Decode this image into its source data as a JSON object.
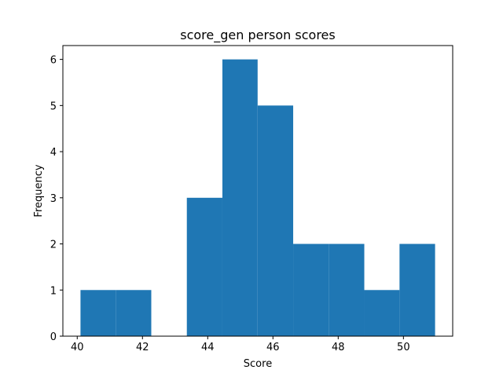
{
  "chart_data": {
    "type": "bar",
    "subtype": "histogram",
    "title": "score_gen person scores",
    "xlabel": "Score",
    "ylabel": "Frequency",
    "bar_color": "#1f77b4",
    "bins": [
      {
        "x0": 40.1,
        "x1": 41.18,
        "count": 1
      },
      {
        "x0": 41.18,
        "x1": 42.27,
        "count": 1
      },
      {
        "x0": 42.27,
        "x1": 43.36,
        "count": 0
      },
      {
        "x0": 43.36,
        "x1": 44.45,
        "count": 3
      },
      {
        "x0": 44.45,
        "x1": 45.53,
        "count": 6
      },
      {
        "x0": 45.53,
        "x1": 46.62,
        "count": 5
      },
      {
        "x0": 46.62,
        "x1": 47.71,
        "count": 2
      },
      {
        "x0": 47.71,
        "x1": 48.8,
        "count": 2
      },
      {
        "x0": 48.8,
        "x1": 49.88,
        "count": 1
      },
      {
        "x0": 49.88,
        "x1": 50.97,
        "count": 2
      }
    ],
    "xlim": [
      39.56,
      51.51
    ],
    "ylim": [
      0,
      6.3
    ],
    "xticks": [
      "40",
      "42",
      "44",
      "46",
      "48",
      "50"
    ],
    "yticks": [
      "0",
      "1",
      "2",
      "3",
      "4",
      "5",
      "6"
    ],
    "grid": false,
    "legend": "none"
  }
}
